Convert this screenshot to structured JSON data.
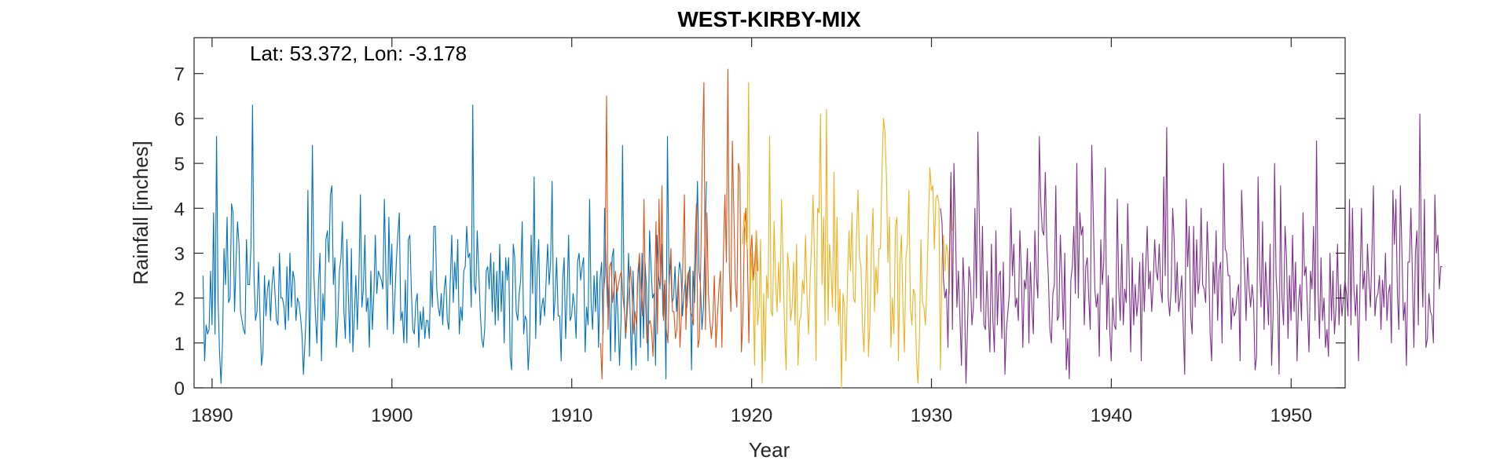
{
  "chart_data": {
    "type": "line",
    "title": "WEST-KIRBY-MIX",
    "annotation": "Lat: 53.372, Lon: -3.178",
    "xlabel": "Year",
    "ylabel": "Rainfall [inches]",
    "xlim": [
      1889,
      1953
    ],
    "ylim": [
      0,
      7.8
    ],
    "xticks": [
      1890,
      1900,
      1910,
      1920,
      1930,
      1940,
      1950
    ],
    "yticks": [
      0,
      1,
      2,
      3,
      4,
      5,
      6,
      7
    ],
    "grid": false,
    "legend": "none",
    "series": [
      {
        "color": "#0072BD",
        "x_start": 1889.5,
        "x_step": 0.0833,
        "values": [
          2.5,
          0.6,
          1.4,
          1.2,
          1.3,
          2.6,
          1.4,
          3.9,
          1.2,
          5.6,
          2.0,
          0.8,
          0.1,
          1.0,
          3.1,
          2.3,
          3.8,
          1.9,
          2.0,
          4.1,
          3.9,
          1.7,
          2.8,
          3.7,
          3.2,
          1.7,
          1.5,
          1.3,
          1.2,
          3.3,
          2.3,
          2.3,
          3.2,
          6.3,
          2.5,
          1.5,
          1.7,
          2.8,
          1.6,
          0.5,
          0.8,
          2.5,
          1.6,
          2.2,
          2.4,
          1.5,
          2.3,
          2.7,
          2.1,
          1.5,
          1.4,
          3.0,
          2.0,
          2.0,
          1.8,
          1.3,
          2.7,
          1.5,
          3.0,
          1.8,
          2.6,
          2.4,
          1.5,
          2.0,
          1.9,
          1.6,
          1.2,
          0.3,
          1.0,
          1.8,
          4.4,
          0.7,
          2.3,
          5.4,
          2.5,
          1.6,
          1.0,
          2.3,
          3.0,
          0.6,
          2.1,
          1.5,
          3.3,
          3.5,
          2.8,
          4.3,
          4.5,
          2.3,
          2.9,
          0.9,
          1.6,
          2.6,
          2.9,
          3.7,
          1.7,
          1.1,
          3.3,
          2.0,
          1.0,
          3.1,
          0.8,
          1.6,
          2.5,
          1.3,
          2.5,
          4.3,
          1.8,
          2.2,
          3.4,
          1.7,
          2.0,
          0.9,
          2.6,
          1.3,
          2.1,
          3.4,
          2.1,
          2.6,
          2.5,
          2.4,
          2.2,
          4.2,
          2.6,
          1.3,
          3.8,
          2.3,
          3.2,
          1.2,
          2.0,
          2.8,
          3.4,
          3.9,
          1.5,
          1.7,
          1.0,
          2.4,
          1.0,
          3.3,
          3.4,
          2.2,
          1.3,
          1.2,
          1.9,
          2.1,
          0.9,
          1.7,
          1.3,
          1.8,
          1.1,
          1.5,
          1.5,
          1.1,
          2.6,
          1.8,
          3.6,
          3.6,
          2.2,
          1.8,
          1.6,
          2.1,
          1.4,
          2.2,
          2.5,
          1.5,
          1.3,
          2.4,
          3.4,
          1.9,
          2.8,
          2.2,
          3.3,
          1.2,
          1.8,
          1.5,
          2.6,
          2.7,
          3.6,
          2.9,
          3.0,
          1.8,
          6.3,
          2.3,
          2.1,
          3.5,
          2.6,
          1.7,
          1.1,
          0.9,
          1.3,
          2.6,
          2.7,
          2.2,
          3.0,
          1.7,
          2.8,
          1.4,
          2.6,
          1.5,
          3.2,
          1.7,
          2.6,
          1.0,
          2.9,
          2.4,
          2.9,
          0.7,
          0.4,
          3.2,
          2.9,
          1.7,
          1.5,
          2.1,
          2.4,
          3.7,
          1.2,
          1.6,
          1.5,
          0.4,
          1.0,
          3.4,
          2.1,
          4.7,
          1.1,
          2.6,
          3.3,
          1.4,
          1.8,
          2.0,
          1.6,
          2.4,
          3.2,
          2.3,
          2.8,
          4.6,
          1.5,
          2.0,
          2.9,
          1.6,
          1.6,
          0.6,
          2.4,
          2.9,
          1.1,
          2.1,
          3.4,
          1.5,
          1.6,
          2.1,
          1.8,
          1.1,
          2.8,
          3.0,
          2.4,
          2.7,
          2.9,
          0.8,
          1.8,
          1.4,
          4.2,
          1.9,
          1.3,
          2.5,
          1.7,
          2.6,
          0.9,
          2.4,
          2.8,
          1.2,
          4.0,
          2.7,
          1.8,
          2.3,
          0.6,
          2.9,
          3.1,
          0.8,
          2.3,
          1.6,
          0.5,
          1.5,
          5.4,
          2.0,
          1.1,
          1.9,
          3.0,
          1.7,
          0.4,
          2.6,
          1.4,
          0.5,
          2.4,
          2.8,
          0.9,
          3.0,
          1.1,
          2.8,
          2.2,
          0.6,
          3.5,
          2.7,
          2.0,
          2.1,
          0.5,
          3.4,
          2.5,
          2.2,
          3.2,
          1.6,
          2.3,
          0.2,
          5.6,
          2.3,
          2.9,
          1.9,
          2.0,
          2.7,
          1.7,
          2.3,
          2.8,
          2.6,
          1.6,
          2.1,
          2.4,
          1.8,
          2.5,
          2.7,
          0.4,
          2.6,
          1.9,
          3.1,
          4.6,
          2.6,
          2.3,
          1.3,
          1.8,
          3.3,
          4.6
        ]
      },
      {
        "color": "#D95319",
        "x_start": 1911.6,
        "x_step": 0.0833,
        "values": [
          1.0,
          0.2,
          2.1,
          2.5,
          6.5,
          1.3,
          2.7,
          2.8,
          1.9,
          2.2,
          2.6,
          2.1,
          2.3,
          2.5,
          2.6,
          2.0,
          1.7,
          1.2,
          1.8,
          2.2,
          2.7,
          2.1,
          1.2,
          1.7,
          1.4,
          2.6,
          3.0,
          2.2,
          1.6,
          4.2,
          1.9,
          1.0,
          1.4,
          1.5,
          1.3,
          0.7,
          2.0,
          3.7,
          1.2,
          4.2,
          2.3,
          4.5,
          1.5,
          2.4,
          1.3,
          1.0,
          2.5,
          3.1,
          1.7,
          1.7,
          1.1,
          1.3,
          2.5,
          0.9,
          1.6,
          2.9,
          4.3,
          1.3,
          2.5,
          2.6,
          1.7,
          1.6,
          1.4,
          3.2,
          4.1,
          0.9,
          1.1,
          3.0,
          5.3,
          6.8,
          1.3,
          3.9,
          2.1,
          1.5,
          1.1,
          1.5,
          2.5,
          0.9,
          1.6,
          2.2,
          2.6,
          0.9,
          3.0,
          4.3,
          2.8,
          7.1,
          2.6,
          1.7,
          5.5,
          3.9,
          2.3,
          1.8,
          5.0,
          4.8,
          0.8,
          1.5,
          3.5,
          4.0,
          3.0,
          1.0,
          2.9,
          3.4,
          2.4,
          2.8,
          3.5,
          2.6
        ]
      },
      {
        "color": "#EDB120",
        "x_start": 1919.5,
        "x_step": 0.0833,
        "values": [
          3.2,
          3.9,
          3.4,
          3.1,
          6.8,
          1.9,
          3.0,
          2.2,
          0.5,
          3.5,
          1.4,
          1.8,
          3.3,
          0.1,
          2.1,
          0.6,
          2.5,
          2.0,
          5.6,
          1.7,
          1.6,
          3.7,
          2.4,
          1.7,
          2.8,
          1.9,
          4.2,
          2.8,
          1.3,
          0.4,
          3.0,
          2.6,
          1.5,
          1.8,
          2.8,
          1.4,
          3.2,
          0.5,
          1.5,
          1.6,
          2.4,
          2.1,
          3.4,
          2.0,
          1.2,
          2.4,
          3.2,
          4.3,
          2.9,
          0.6,
          4.0,
          3.9,
          6.1,
          2.3,
          3.8,
          1.4,
          6.2,
          1.5,
          3.2,
          2.6,
          1.8,
          4.8,
          1.7,
          3.8,
          1.4,
          2.2,
          0.0,
          2.1,
          1.8,
          0.6,
          2.4,
          3.5,
          2.6,
          3.9,
          2.0,
          1.9,
          3.4,
          4.4,
          2.9,
          2.7,
          1.4,
          0.8,
          2.1,
          3.4,
          0.7,
          1.5,
          3.1,
          4.0,
          1.7,
          2.7,
          2.1,
          3.1,
          3.1,
          4.8,
          6.0,
          5.7,
          4.7,
          2.8,
          3.8,
          0.9,
          2.0,
          1.2,
          3.6,
          3.8,
          0.6,
          2.8,
          3.4,
          1.8,
          0.8,
          2.9,
          3.2,
          4.4,
          1.8,
          1.4,
          2.2,
          2.1,
          0.7,
          0.1,
          1.1,
          3.3,
          1.9,
          1.8,
          1.4,
          2.3,
          3.7,
          4.9,
          4.4,
          4.5,
          3.1,
          4.2,
          4.3,
          4.1,
          0.4,
          2.8,
          3.4,
          2.6,
          3.2,
          3.0,
          2.1,
          4.7,
          3.5
        ]
      },
      {
        "color": "#7E2F8E",
        "x_start": 1930.5,
        "x_step": 0.0833,
        "values": [
          4.0,
          3.7,
          2.4,
          2.0,
          2.2,
          0.9,
          2.9,
          4.8,
          1.3,
          5.0,
          3.6,
          1.8,
          2.6,
          1.6,
          0.5,
          2.9,
          2.1,
          0.1,
          1.3,
          2.7,
          2.4,
          1.4,
          1.8,
          4.0,
          2.0,
          5.7,
          3.6,
          1.7,
          3.6,
          1.4,
          1.3,
          2.6,
          1.6,
          0.8,
          3.2,
          1.5,
          0.8,
          3.5,
          1.4,
          2.5,
          2.6,
          1.1,
          2.8,
          0.3,
          1.3,
          1.7,
          2.1,
          4.0,
          2.5,
          3.2,
          1.8,
          2.0,
          1.5,
          3.5,
          2.6,
          0.9,
          2.4,
          2.2,
          3.1,
          1.0,
          2.8,
          1.8,
          1.2,
          3.5,
          2.5,
          2.0,
          5.6,
          4.1,
          3.5,
          3.4,
          4.8,
          3.2,
          2.5,
          1.3,
          1.0,
          2.1,
          2.3,
          4.5,
          1.5,
          1.6,
          3.4,
          2.5,
          1.3,
          3.0,
          0.4,
          1.1,
          0.2,
          2.4,
          2.7,
          3.6,
          2.1,
          5.0,
          2.0,
          3.9,
          3.4,
          3.6,
          1.4,
          2.7,
          2.9,
          2.0,
          1.3,
          5.4,
          3.8,
          2.2,
          1.8,
          2.1,
          0.7,
          3.3,
          2.3,
          2.8,
          4.9,
          1.3,
          2.5,
          1.3,
          0.6,
          2.0,
          1.4,
          1.3,
          4.2,
          2.2,
          1.5,
          3.2,
          1.4,
          2.2,
          1.9,
          4.1,
          2.5,
          0.8,
          2.9,
          1.4,
          2.3,
          1.6,
          2.0,
          2.8,
          0.6,
          3.0,
          1.7,
          2.7,
          3.6,
          2.2,
          2.6,
          1.7,
          2.3,
          3.3,
          2.6,
          2.4,
          3.2,
          2.2,
          1.9,
          4.7,
          2.5,
          5.8,
          2.0,
          1.6,
          2.2,
          4.0,
          3.3,
          1.9,
          2.8,
          1.7,
          2.0,
          2.5,
          1.4,
          0.3,
          4.2,
          2.7,
          3.6,
          1.6,
          1.2,
          3.6,
          1.8,
          3.3,
          2.1,
          2.4,
          4.0,
          2.3,
          2.2,
          1.9,
          3.7,
          2.8,
          1.2,
          0.6,
          2.8,
          2.1,
          3.5,
          1.5,
          2.6,
          2.8,
          1.0,
          5.0,
          3.1,
          3.0,
          2.5,
          2.5,
          1.3,
          2.0,
          1.6,
          1.7,
          2.1,
          2.3,
          0.6,
          4.4,
          3.4,
          2.6,
          1.5,
          2.9,
          2.2,
          1.8,
          2.3,
          1.9,
          0.4,
          0.7,
          4.7,
          2.7,
          1.8,
          3.7,
          1.3,
          2.8,
          2.1,
          1.4,
          3.2,
          0.5,
          1.6,
          5.0,
          2.5,
          1.9,
          0.3,
          4.5,
          2.0,
          1.4,
          3.6,
          2.9,
          1.1,
          2.5,
          1.5,
          3.4,
          1.7,
          2.8,
          0.6,
          1.9,
          2.3,
          1.5,
          3.9,
          2.5,
          2.7,
          1.7,
          0.8,
          2.6,
          2.2,
          3.6,
          1.5,
          5.5,
          2.2,
          1.1,
          2.9,
          1.5,
          2.0,
          0.9,
          1.3,
          0.7,
          3.0,
          1.5,
          2.6,
          1.2,
          1.8,
          3.2,
          1.4,
          2.3,
          1.6,
          2.0,
          2.4,
          2.1,
          1.6,
          4.2,
          1.4,
          4.0,
          2.2,
          1.6,
          2.3,
          0.6,
          2.2,
          4.0,
          2.2,
          2.6,
          1.5,
          3.2,
          2.4,
          1.8,
          3.0,
          4.5,
          1.6,
          2.0,
          2.1,
          2.5,
          1.3,
          2.4,
          1.8,
          3.0,
          1.5,
          2.1,
          2.3,
          1.0,
          4.4,
          3.2,
          4.2,
          2.1,
          1.3,
          4.5,
          3.0,
          1.5,
          1.9,
          0.5,
          2.8,
          2.8,
          4.0,
          2.5,
          0.9,
          3.0,
          3.5,
          1.4,
          6.1,
          3.0,
          1.8,
          4.2,
          0.9,
          1.1,
          2.1,
          1.7,
          1.6,
          1.0,
          4.3,
          3.0,
          3.4,
          2.2,
          2.7,
          2.7
        ]
      }
    ]
  }
}
